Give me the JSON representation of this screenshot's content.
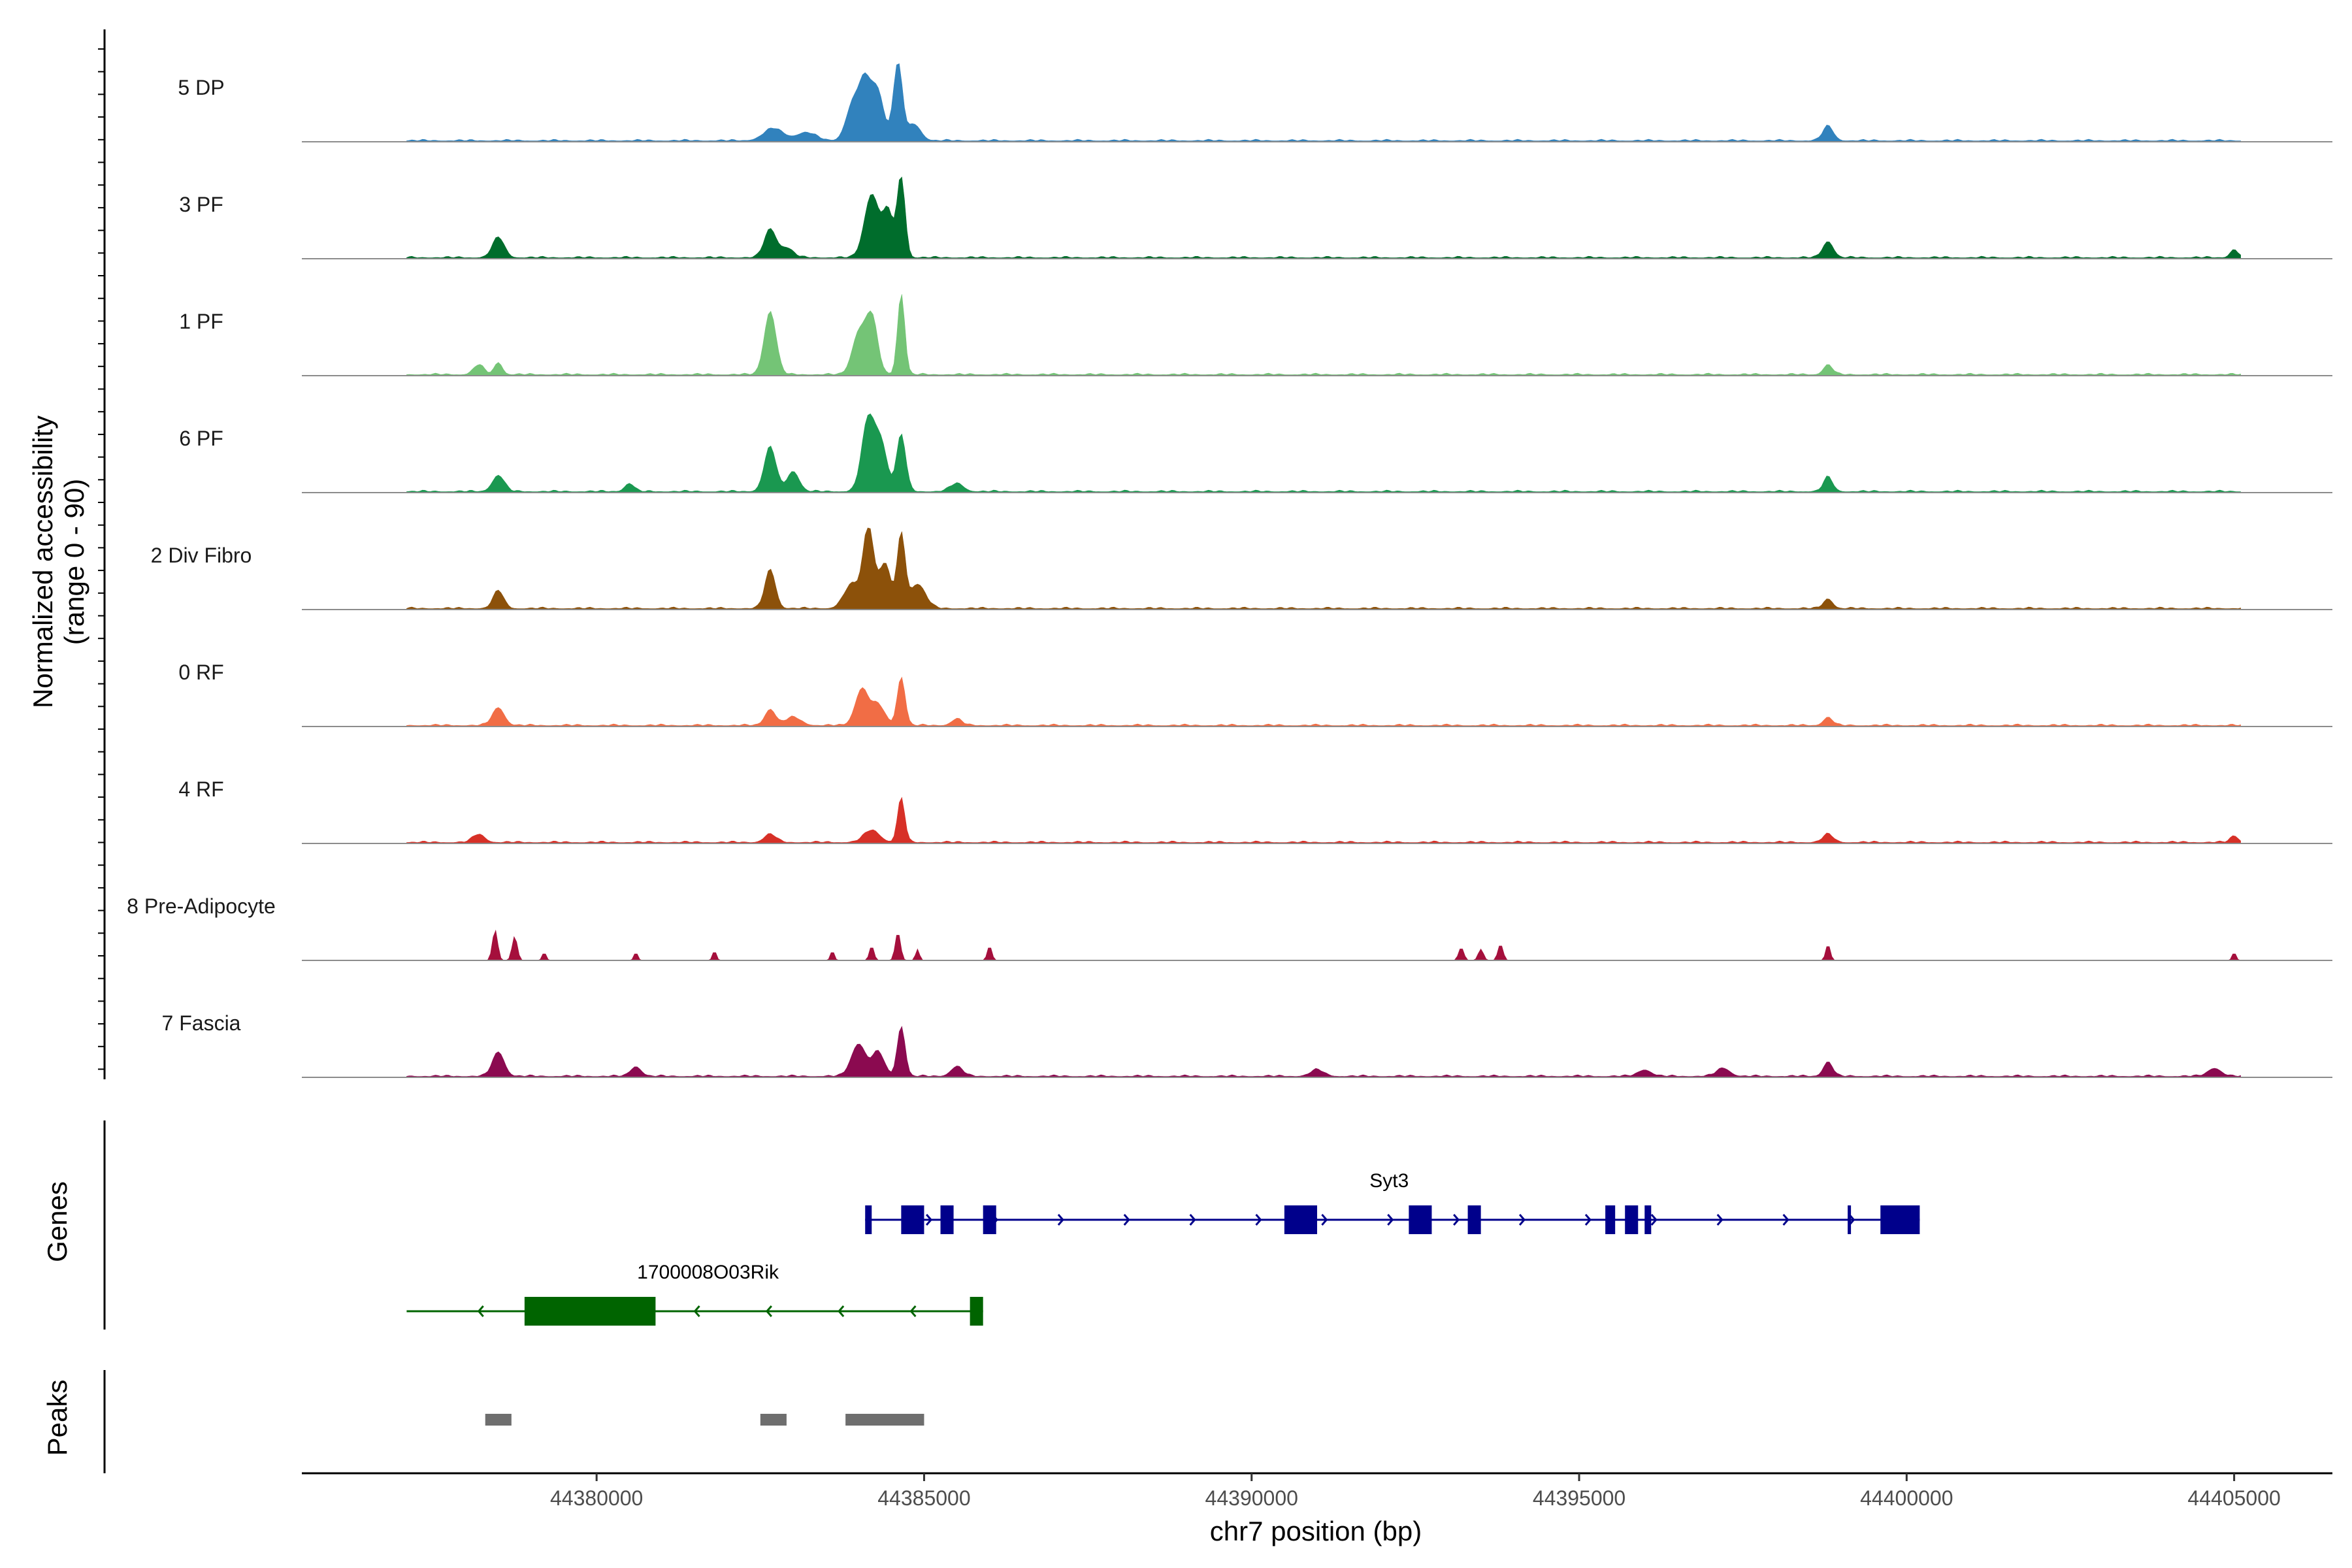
{
  "chart_data": {
    "type": "area",
    "title": "",
    "xlabel": "chr7 position (bp)",
    "ylabel": "Normalized accessibility",
    "ylabel_sub": "(range 0 - 90)",
    "xlim": [
      44375500,
      44406500
    ],
    "ylim": [
      0,
      90
    ],
    "x_ticks": [
      44380000,
      44385000,
      44390000,
      44395000,
      44400000,
      44405000
    ],
    "x_tick_labels": [
      "44380000",
      "44385000",
      "44390000",
      "44395000",
      "44400000",
      "44405000"
    ],
    "coverage_range": [
      44377100,
      44405100
    ],
    "tracks": [
      {
        "name": "5 DP",
        "color": "#3182BD",
        "peaks": [
          [
            44382700,
            0.15,
            150
          ],
          [
            44383200,
            0.1,
            150
          ],
          [
            44383900,
            0.4,
            100
          ],
          [
            44384100,
            0.72,
            100
          ],
          [
            44384300,
            0.55,
            90
          ],
          [
            44384600,
            0.95,
            70
          ],
          [
            44384850,
            0.2,
            100
          ],
          [
            44398800,
            0.18,
            80
          ]
        ]
      },
      {
        "name": "3 PF",
        "color": "#006D2C",
        "peaks": [
          [
            44378500,
            0.25,
            90
          ],
          [
            44382650,
            0.35,
            90
          ],
          [
            44382900,
            0.12,
            100
          ],
          [
            44384200,
            0.78,
            110
          ],
          [
            44384450,
            0.55,
            80
          ],
          [
            44384650,
            1.0,
            60
          ],
          [
            44398800,
            0.2,
            80
          ],
          [
            44405000,
            0.1,
            60
          ]
        ]
      },
      {
        "name": "1 PF",
        "color": "#74C476",
        "peaks": [
          [
            44378200,
            0.12,
            80
          ],
          [
            44378500,
            0.15,
            60
          ],
          [
            44382650,
            0.78,
            90
          ],
          [
            44384000,
            0.5,
            100
          ],
          [
            44384200,
            0.7,
            90
          ],
          [
            44384650,
            1.0,
            55
          ],
          [
            44398800,
            0.12,
            70
          ]
        ]
      },
      {
        "name": "6 PF",
        "color": "#1A9850",
        "peaks": [
          [
            44378500,
            0.2,
            90
          ],
          [
            44380500,
            0.1,
            70
          ],
          [
            44382650,
            0.55,
            90
          ],
          [
            44383000,
            0.25,
            90
          ],
          [
            44384150,
            0.9,
            100
          ],
          [
            44384350,
            0.55,
            90
          ],
          [
            44384650,
            0.7,
            70
          ],
          [
            44385500,
            0.1,
            100
          ],
          [
            44398800,
            0.18,
            70
          ]
        ]
      },
      {
        "name": "2 Div Fibro",
        "color": "#8C510A",
        "peaks": [
          [
            44378500,
            0.22,
            80
          ],
          [
            44382650,
            0.48,
            80
          ],
          [
            44383900,
            0.3,
            120
          ],
          [
            44384150,
            1.0,
            80
          ],
          [
            44384400,
            0.55,
            90
          ],
          [
            44384650,
            0.9,
            60
          ],
          [
            44384900,
            0.3,
            120
          ],
          [
            44398800,
            0.12,
            70
          ]
        ]
      },
      {
        "name": "0 RF",
        "color": "#F16D45",
        "peaks": [
          [
            44378500,
            0.22,
            90
          ],
          [
            44382650,
            0.2,
            80
          ],
          [
            44383000,
            0.1,
            120
          ],
          [
            44384050,
            0.45,
            100
          ],
          [
            44384300,
            0.25,
            100
          ],
          [
            44384650,
            0.6,
            60
          ],
          [
            44385500,
            0.08,
            80
          ],
          [
            44398800,
            0.1,
            70
          ]
        ]
      },
      {
        "name": "4 RF",
        "color": "#D73027",
        "peaks": [
          [
            44378200,
            0.1,
            90
          ],
          [
            44382650,
            0.1,
            90
          ],
          [
            44384200,
            0.15,
            120
          ],
          [
            44384650,
            0.55,
            55
          ],
          [
            44398800,
            0.1,
            80
          ],
          [
            44405000,
            0.08,
            60
          ]
        ]
      },
      {
        "name": "8 Pre-Adipocyte",
        "color": "#A50F3C",
        "peaks": [
          [
            44378450,
            0.38,
            40
          ],
          [
            44378750,
            0.3,
            40
          ],
          [
            44379200,
            0.1,
            30
          ],
          [
            44380600,
            0.1,
            30
          ],
          [
            44381800,
            0.12,
            30
          ],
          [
            44383600,
            0.12,
            30
          ],
          [
            44384200,
            0.18,
            35
          ],
          [
            44384600,
            0.35,
            40
          ],
          [
            44384900,
            0.14,
            30
          ],
          [
            44386000,
            0.18,
            35
          ],
          [
            44393200,
            0.16,
            40
          ],
          [
            44393500,
            0.14,
            40
          ],
          [
            44393800,
            0.2,
            40
          ],
          [
            44398800,
            0.2,
            35
          ],
          [
            44405000,
            0.1,
            30
          ]
        ]
      },
      {
        "name": "7 Fascia",
        "color": "#8B0A50",
        "peaks": [
          [
            44378500,
            0.3,
            90
          ],
          [
            44380600,
            0.12,
            80
          ],
          [
            44384000,
            0.4,
            110
          ],
          [
            44384300,
            0.3,
            90
          ],
          [
            44384650,
            0.62,
            60
          ],
          [
            44385500,
            0.12,
            90
          ],
          [
            44391000,
            0.08,
            100
          ],
          [
            44396000,
            0.08,
            100
          ],
          [
            44397200,
            0.1,
            100
          ],
          [
            44398800,
            0.18,
            70
          ],
          [
            44404700,
            0.1,
            100
          ]
        ]
      }
    ],
    "genes": [
      {
        "name": "Syt3",
        "strand": "+",
        "color": "#00008B",
        "start": 44384100,
        "end": 44400200,
        "exons": [
          [
            44384100,
            44384200
          ],
          [
            44384650,
            44385000
          ],
          [
            44385250,
            44385450
          ],
          [
            44385900,
            44386100
          ],
          [
            44390500,
            44391000
          ],
          [
            44392400,
            44392750
          ],
          [
            44393300,
            44393500
          ],
          [
            44395400,
            44395550
          ],
          [
            44395700,
            44395900
          ],
          [
            44396000,
            44396100
          ],
          [
            44399100,
            44399150
          ],
          [
            44399600,
            44400200
          ]
        ]
      },
      {
        "name": "1700008O03Rik",
        "strand": "-",
        "color": "#006400",
        "start": 44377100,
        "end": 44385900,
        "exons": [
          [
            44378900,
            44380900
          ],
          [
            44385700,
            44385900
          ]
        ]
      }
    ],
    "peak_regions": [
      [
        44378300,
        44378700
      ],
      [
        44382500,
        44382900
      ],
      [
        44383800,
        44385000
      ]
    ],
    "peak_track_label": "Peaks",
    "gene_track_label": "Genes"
  }
}
